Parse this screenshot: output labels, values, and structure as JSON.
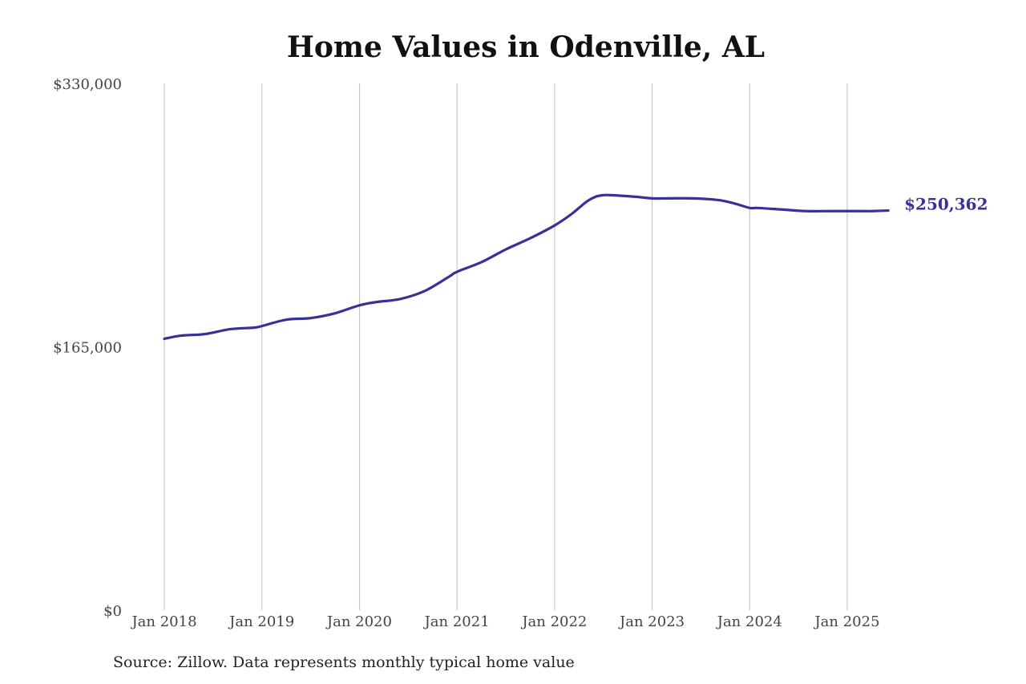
{
  "chart_data": {
    "type": "line",
    "title": "Home Values in Odenville, AL",
    "xlabel": "",
    "ylabel": "",
    "ylim": [
      0,
      330000
    ],
    "yticks": [
      {
        "value": 0,
        "label": "$0"
      },
      {
        "value": 165000,
        "label": "$165,000"
      },
      {
        "value": 330000,
        "label": "$330,000"
      }
    ],
    "xticks": [
      {
        "value": 2018.0,
        "label": "Jan 2018"
      },
      {
        "value": 2019.0,
        "label": "Jan 2019"
      },
      {
        "value": 2020.0,
        "label": "Jan 2020"
      },
      {
        "value": 2021.0,
        "label": "Jan 2021"
      },
      {
        "value": 2022.0,
        "label": "Jan 2022"
      },
      {
        "value": 2023.0,
        "label": "Jan 2023"
      },
      {
        "value": 2024.0,
        "label": "Jan 2024"
      },
      {
        "value": 2025.0,
        "label": "Jan 2025"
      }
    ],
    "xlim": [
      2017.75,
      2025.65
    ],
    "grid": "vertical",
    "color": "#36329a",
    "end_label": "$250,362",
    "series": [
      {
        "x": [
          2018.0,
          2018.17,
          2018.42,
          2018.67,
          2018.92,
          2019.0,
          2019.25,
          2019.5,
          2019.75,
          2020.0,
          2020.17,
          2020.42,
          2020.67,
          2020.92,
          2021.0,
          2021.25,
          2021.5,
          2021.75,
          2022.0,
          2022.17,
          2022.33,
          2022.42,
          2022.5,
          2022.58,
          2022.83,
          2023.0,
          2023.17,
          2023.42,
          2023.67,
          2023.83,
          2024.0,
          2024.08,
          2024.33,
          2024.58,
          2024.83,
          2025.0,
          2025.17,
          2025.25,
          2025.42
        ],
        "values": [
          170000,
          172000,
          173000,
          176000,
          177000,
          178000,
          182000,
          183000,
          186000,
          191000,
          193000,
          195000,
          200000,
          209000,
          212000,
          218000,
          226000,
          233000,
          241000,
          248000,
          256000,
          259000,
          260000,
          260000,
          259000,
          258000,
          258000,
          258000,
          257000,
          255000,
          252000,
          252000,
          251000,
          250000,
          250000,
          250000,
          250000,
          250000,
          250362
        ]
      }
    ]
  },
  "footer": {
    "source": "Source: Zillow. Data represents monthly typical home value"
  }
}
